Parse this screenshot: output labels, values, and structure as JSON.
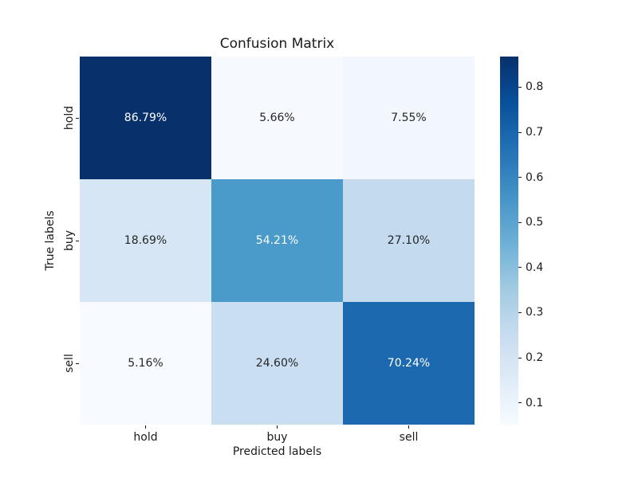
{
  "chart_data": {
    "type": "heatmap",
    "title": "Confusion Matrix",
    "xlabel": "Predicted labels",
    "ylabel": "True labels",
    "x_categories": [
      "hold",
      "buy",
      "sell"
    ],
    "y_categories": [
      "hold",
      "buy",
      "sell"
    ],
    "values_percent": [
      [
        86.79,
        5.66,
        7.55
      ],
      [
        18.69,
        54.21,
        27.1
      ],
      [
        5.16,
        24.6,
        70.24
      ]
    ],
    "cells": [
      [
        {
          "label": "86.79%",
          "color": "#08306b",
          "text_color": "#ffffff"
        },
        {
          "label": "5.66%",
          "color": "#f6fafe",
          "text_color": "#262626"
        },
        {
          "label": "7.55%",
          "color": "#f2f7fd",
          "text_color": "#262626"
        }
      ],
      [
        {
          "label": "18.69%",
          "color": "#d6e6f4",
          "text_color": "#262626"
        },
        {
          "label": "54.21%",
          "color": "#4a9aca",
          "text_color": "#ffffff"
        },
        {
          "label": "27.10%",
          "color": "#c3daef",
          "text_color": "#262626"
        }
      ],
      [
        {
          "label": "5.16%",
          "color": "#f7fbff",
          "text_color": "#262626"
        },
        {
          "label": "24.60%",
          "color": "#cadef2",
          "text_color": "#262626"
        },
        {
          "label": "70.24%",
          "color": "#1c69af",
          "text_color": "#ffffff"
        }
      ]
    ],
    "colormap": "Blues",
    "grid": false,
    "colorbar": {
      "position": "right",
      "vmin": 0.0516,
      "vmax": 0.8679,
      "ticks": [
        0.1,
        0.2,
        0.3,
        0.4,
        0.5,
        0.6,
        0.7,
        0.8
      ],
      "tick_labels": [
        "0.1",
        "0.2",
        "0.3",
        "0.4",
        "0.5",
        "0.6",
        "0.7",
        "0.8"
      ],
      "gradient_top_to_bottom": [
        "#08306b",
        "#08519c",
        "#2171b5",
        "#4292c6",
        "#6baed6",
        "#9ecae1",
        "#c6dbef",
        "#deebf7",
        "#f7fbff"
      ]
    }
  }
}
